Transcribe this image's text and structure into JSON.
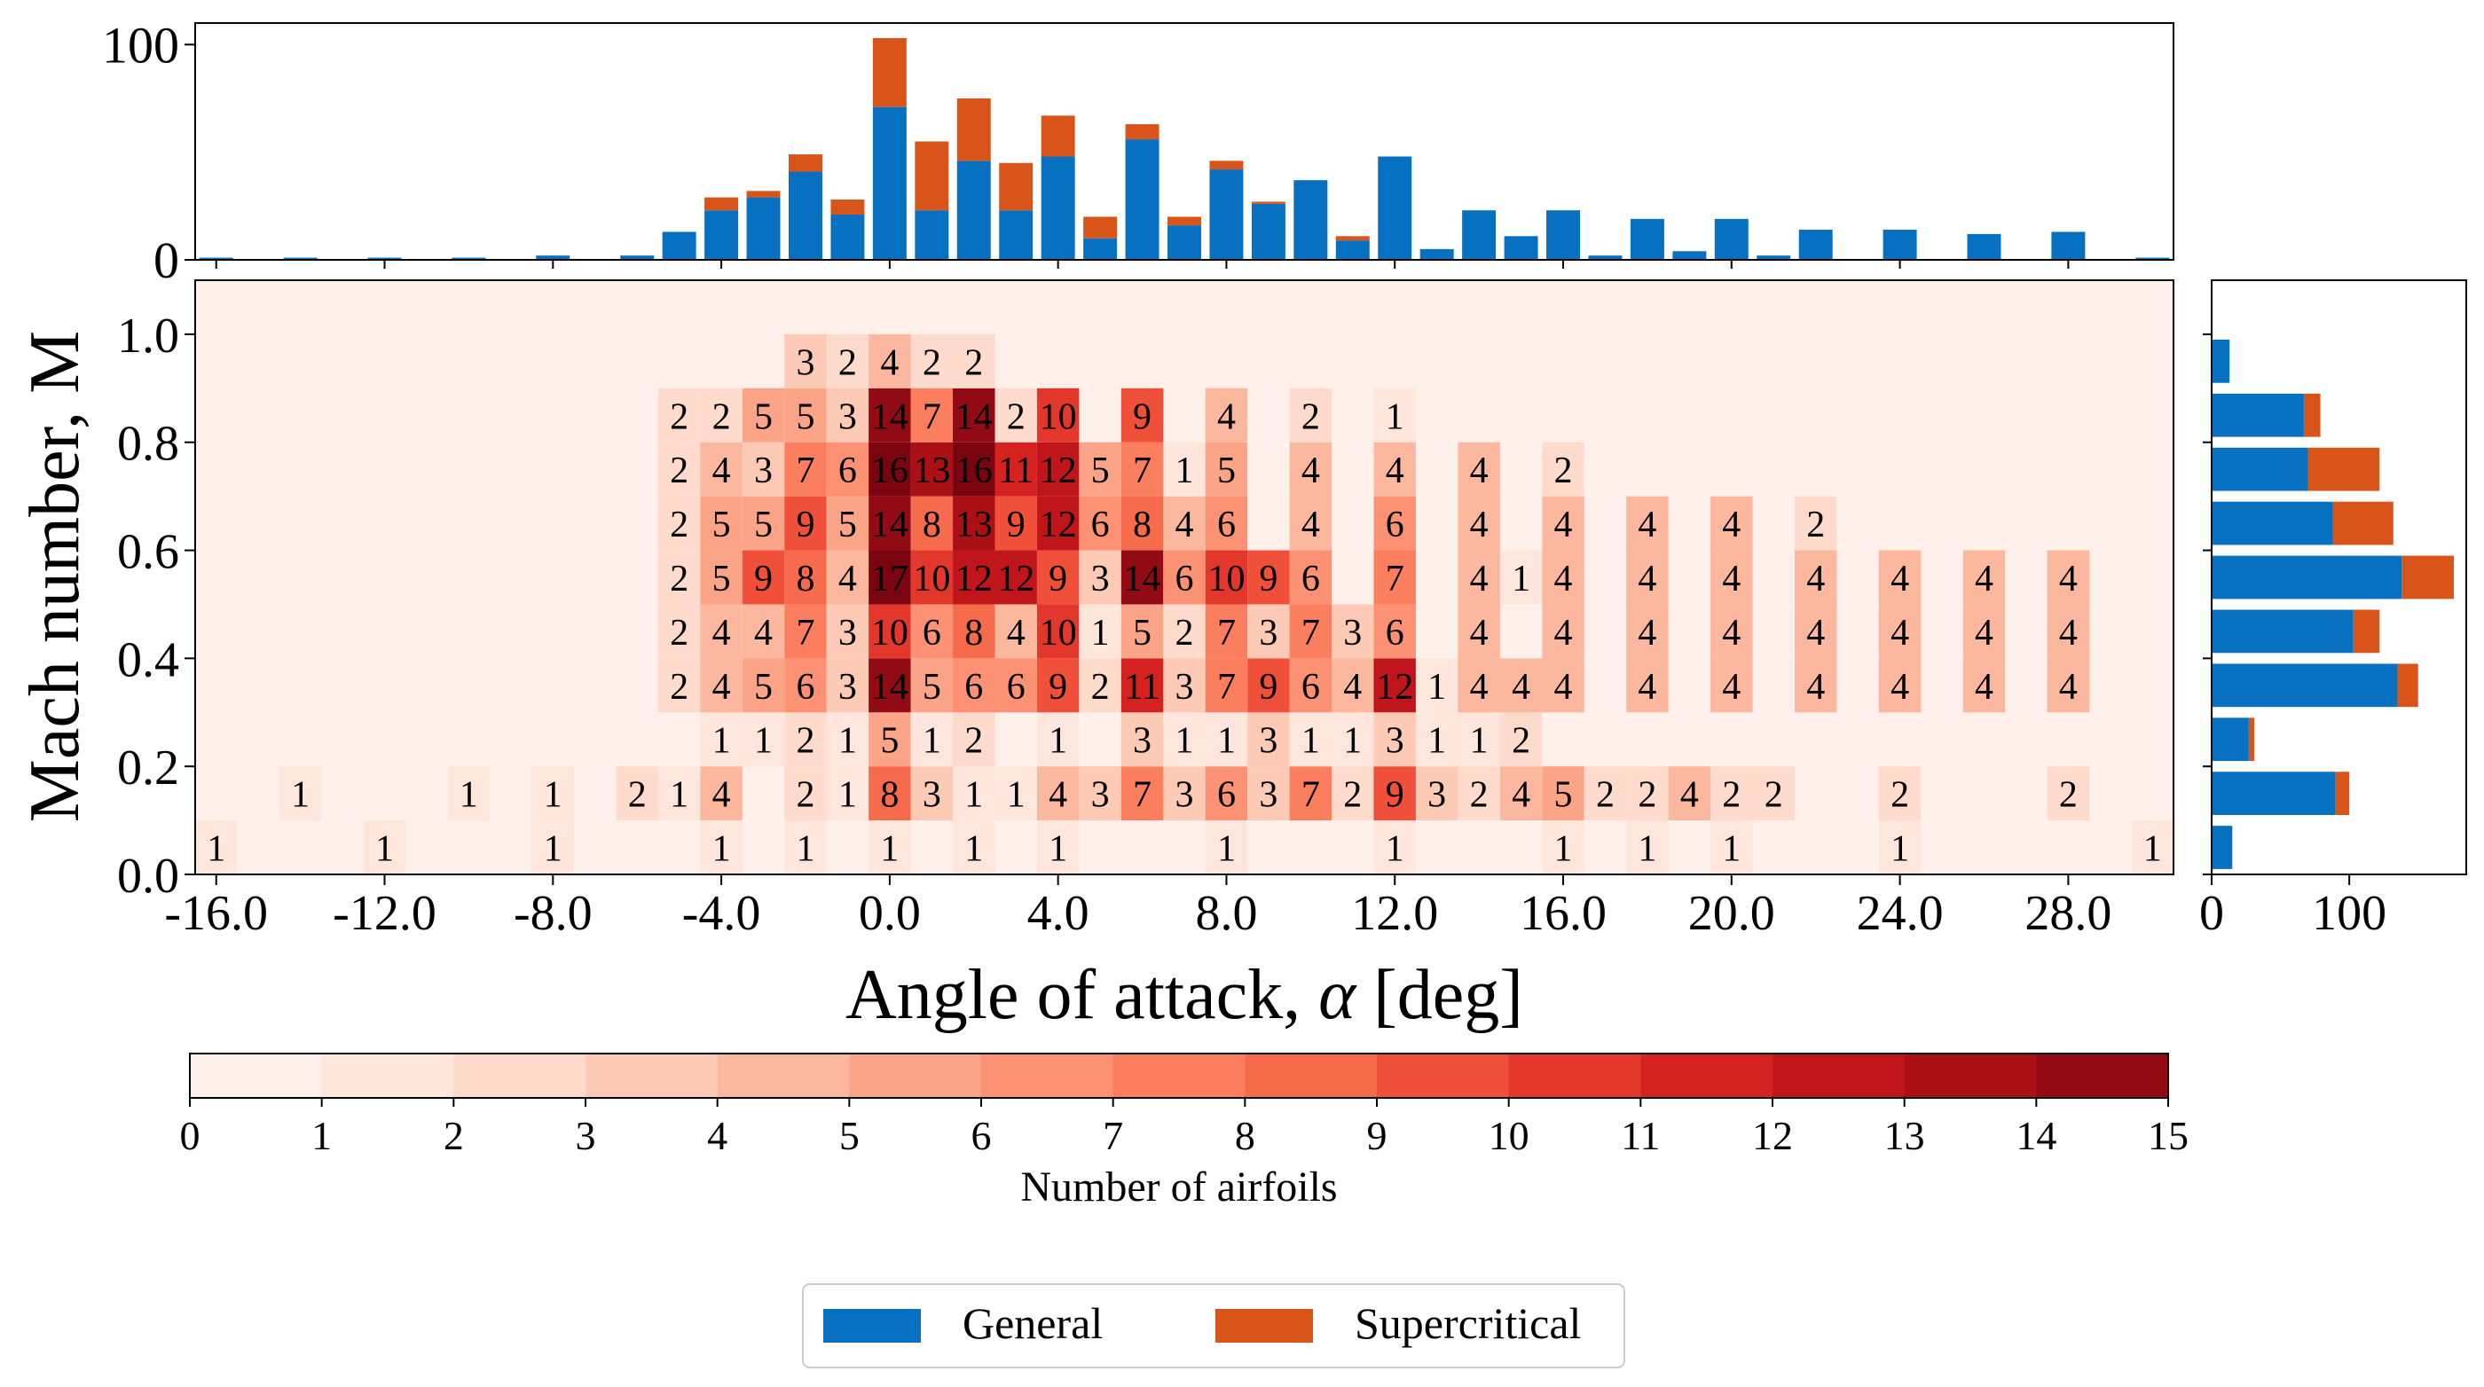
{
  "chart_data": [
    {
      "type": "bar",
      "role": "top-marginal-histogram",
      "stacked": true,
      "x": [
        -16,
        -14,
        -12,
        -10,
        -8,
        -6,
        -5,
        -4,
        -3,
        -2,
        -1,
        0,
        1,
        2,
        3,
        4,
        5,
        6,
        7,
        8,
        9,
        10,
        11,
        12,
        13,
        14,
        15,
        16,
        17,
        18,
        19,
        20,
        21,
        22,
        24,
        26,
        28,
        30
      ],
      "series": [
        {
          "name": "General",
          "values": [
            1,
            1,
            1,
            1,
            2,
            2,
            13,
            23,
            29,
            41,
            21,
            71,
            23,
            46,
            23,
            48,
            10,
            56,
            16,
            42,
            26,
            37,
            9,
            48,
            5,
            23,
            11,
            23,
            2,
            19,
            4,
            19,
            2,
            14,
            14,
            12,
            13,
            1
          ]
        },
        {
          "name": "Supercritical",
          "values": [
            0,
            0,
            0,
            0,
            0,
            0,
            0,
            6,
            3,
            8,
            7,
            32,
            32,
            29,
            22,
            19,
            10,
            7,
            4,
            4,
            1,
            0,
            2,
            0,
            0,
            0,
            0,
            0,
            0,
            0,
            0,
            0,
            0,
            0,
            0,
            0,
            0,
            0
          ]
        }
      ],
      "ylim": [
        0,
        110
      ],
      "yticks": [
        "0",
        "100"
      ]
    },
    {
      "type": "heatmap",
      "role": "main",
      "xlabel": "Angle of attack, ",
      "xlabel_symbol": "α",
      "xlabel_unit": " [deg]",
      "ylabel": "Mach number, M",
      "xlim": [
        -16.5,
        30.5
      ],
      "ylim": [
        0.0,
        1.1
      ],
      "xticks": [
        "-16.0",
        "-12.0",
        "-8.0",
        "-4.0",
        "0.0",
        "4.0",
        "8.0",
        "12.0",
        "16.0",
        "20.0",
        "24.0",
        "28.0"
      ],
      "yticks": [
        "0.0",
        "0.2",
        "0.4",
        "0.6",
        "0.8",
        "1.0"
      ],
      "background_color": "#fff0eb",
      "cells": [
        [
          -16,
          0.05,
          1
        ],
        [
          -12,
          0.05,
          1
        ],
        [
          -8,
          0.05,
          1
        ],
        [
          -4,
          0.05,
          1
        ],
        [
          -2,
          0.05,
          1
        ],
        [
          0,
          0.05,
          1
        ],
        [
          2,
          0.05,
          1
        ],
        [
          4,
          0.05,
          1
        ],
        [
          8,
          0.05,
          1
        ],
        [
          12,
          0.05,
          1
        ],
        [
          16,
          0.05,
          1
        ],
        [
          18,
          0.05,
          1
        ],
        [
          20,
          0.05,
          1
        ],
        [
          24,
          0.05,
          1
        ],
        [
          30,
          0.05,
          1
        ],
        [
          -14,
          0.15,
          1
        ],
        [
          -10,
          0.15,
          1
        ],
        [
          -8,
          0.15,
          1
        ],
        [
          -6,
          0.15,
          2
        ],
        [
          -5,
          0.15,
          1
        ],
        [
          -4,
          0.15,
          4
        ],
        [
          -2,
          0.15,
          2
        ],
        [
          -1,
          0.15,
          1
        ],
        [
          0,
          0.15,
          8
        ],
        [
          1,
          0.15,
          3
        ],
        [
          2,
          0.15,
          1
        ],
        [
          3,
          0.15,
          1
        ],
        [
          4,
          0.15,
          4
        ],
        [
          5,
          0.15,
          3
        ],
        [
          6,
          0.15,
          7
        ],
        [
          7,
          0.15,
          3
        ],
        [
          8,
          0.15,
          6
        ],
        [
          9,
          0.15,
          3
        ],
        [
          10,
          0.15,
          7
        ],
        [
          11,
          0.15,
          2
        ],
        [
          12,
          0.15,
          9
        ],
        [
          13,
          0.15,
          3
        ],
        [
          14,
          0.15,
          2
        ],
        [
          15,
          0.15,
          4
        ],
        [
          16,
          0.15,
          5
        ],
        [
          17,
          0.15,
          2
        ],
        [
          18,
          0.15,
          2
        ],
        [
          19,
          0.15,
          4
        ],
        [
          20,
          0.15,
          2
        ],
        [
          21,
          0.15,
          2
        ],
        [
          24,
          0.15,
          2
        ],
        [
          28,
          0.15,
          2
        ],
        [
          -4,
          0.25,
          1
        ],
        [
          -3,
          0.25,
          1
        ],
        [
          -2,
          0.25,
          2
        ],
        [
          -1,
          0.25,
          1
        ],
        [
          0,
          0.25,
          5
        ],
        [
          1,
          0.25,
          1
        ],
        [
          2,
          0.25,
          2
        ],
        [
          4,
          0.25,
          1
        ],
        [
          6,
          0.25,
          3
        ],
        [
          7,
          0.25,
          1
        ],
        [
          8,
          0.25,
          1
        ],
        [
          9,
          0.25,
          3
        ],
        [
          10,
          0.25,
          1
        ],
        [
          11,
          0.25,
          1
        ],
        [
          12,
          0.25,
          3
        ],
        [
          13,
          0.25,
          1
        ],
        [
          14,
          0.25,
          1
        ],
        [
          15,
          0.25,
          2
        ],
        [
          -5,
          0.35,
          2
        ],
        [
          -4,
          0.35,
          4
        ],
        [
          -3,
          0.35,
          5
        ],
        [
          -2,
          0.35,
          6
        ],
        [
          -1,
          0.35,
          3
        ],
        [
          0,
          0.35,
          14
        ],
        [
          1,
          0.35,
          5
        ],
        [
          2,
          0.35,
          6
        ],
        [
          3,
          0.35,
          6
        ],
        [
          4,
          0.35,
          9
        ],
        [
          5,
          0.35,
          2
        ],
        [
          6,
          0.35,
          11
        ],
        [
          7,
          0.35,
          3
        ],
        [
          8,
          0.35,
          7
        ],
        [
          9,
          0.35,
          9
        ],
        [
          10,
          0.35,
          6
        ],
        [
          11,
          0.35,
          4
        ],
        [
          12,
          0.35,
          12
        ],
        [
          13,
          0.35,
          1
        ],
        [
          14,
          0.35,
          4
        ],
        [
          15,
          0.35,
          4
        ],
        [
          16,
          0.35,
          4
        ],
        [
          18,
          0.35,
          4
        ],
        [
          20,
          0.35,
          4
        ],
        [
          22,
          0.35,
          4
        ],
        [
          24,
          0.35,
          4
        ],
        [
          26,
          0.35,
          4
        ],
        [
          28,
          0.35,
          4
        ],
        [
          -5,
          0.45,
          2
        ],
        [
          -4,
          0.45,
          4
        ],
        [
          -3,
          0.45,
          4
        ],
        [
          -2,
          0.45,
          7
        ],
        [
          -1,
          0.45,
          3
        ],
        [
          0,
          0.45,
          10
        ],
        [
          1,
          0.45,
          6
        ],
        [
          2,
          0.45,
          8
        ],
        [
          3,
          0.45,
          4
        ],
        [
          4,
          0.45,
          10
        ],
        [
          5,
          0.45,
          1
        ],
        [
          6,
          0.45,
          5
        ],
        [
          7,
          0.45,
          2
        ],
        [
          8,
          0.45,
          7
        ],
        [
          9,
          0.45,
          3
        ],
        [
          10,
          0.45,
          7
        ],
        [
          11,
          0.45,
          3
        ],
        [
          12,
          0.45,
          6
        ],
        [
          14,
          0.45,
          4
        ],
        [
          16,
          0.45,
          4
        ],
        [
          18,
          0.45,
          4
        ],
        [
          20,
          0.45,
          4
        ],
        [
          22,
          0.45,
          4
        ],
        [
          24,
          0.45,
          4
        ],
        [
          26,
          0.45,
          4
        ],
        [
          28,
          0.45,
          4
        ],
        [
          -5,
          0.55,
          2
        ],
        [
          -4,
          0.55,
          5
        ],
        [
          -3,
          0.55,
          9
        ],
        [
          -2,
          0.55,
          8
        ],
        [
          -1,
          0.55,
          4
        ],
        [
          0,
          0.55,
          17
        ],
        [
          1,
          0.55,
          10
        ],
        [
          2,
          0.55,
          12
        ],
        [
          3,
          0.55,
          12
        ],
        [
          4,
          0.55,
          9
        ],
        [
          5,
          0.55,
          3
        ],
        [
          6,
          0.55,
          14
        ],
        [
          7,
          0.55,
          6
        ],
        [
          8,
          0.55,
          10
        ],
        [
          9,
          0.55,
          9
        ],
        [
          10,
          0.55,
          6
        ],
        [
          12,
          0.55,
          7
        ],
        [
          14,
          0.55,
          4
        ],
        [
          15,
          0.55,
          1
        ],
        [
          16,
          0.55,
          4
        ],
        [
          18,
          0.55,
          4
        ],
        [
          20,
          0.55,
          4
        ],
        [
          22,
          0.55,
          4
        ],
        [
          24,
          0.55,
          4
        ],
        [
          26,
          0.55,
          4
        ],
        [
          28,
          0.55,
          4
        ],
        [
          -5,
          0.65,
          2
        ],
        [
          -4,
          0.65,
          5
        ],
        [
          -3,
          0.65,
          5
        ],
        [
          -2,
          0.65,
          9
        ],
        [
          -1,
          0.65,
          5
        ],
        [
          0,
          0.65,
          14
        ],
        [
          1,
          0.65,
          8
        ],
        [
          2,
          0.65,
          13
        ],
        [
          3,
          0.65,
          9
        ],
        [
          4,
          0.65,
          12
        ],
        [
          5,
          0.65,
          6
        ],
        [
          6,
          0.65,
          8
        ],
        [
          7,
          0.65,
          4
        ],
        [
          8,
          0.65,
          6
        ],
        [
          10,
          0.65,
          4
        ],
        [
          12,
          0.65,
          6
        ],
        [
          14,
          0.65,
          4
        ],
        [
          16,
          0.65,
          4
        ],
        [
          18,
          0.65,
          4
        ],
        [
          20,
          0.65,
          4
        ],
        [
          22,
          0.65,
          2
        ],
        [
          -5,
          0.75,
          2
        ],
        [
          -4,
          0.75,
          4
        ],
        [
          -3,
          0.75,
          3
        ],
        [
          -2,
          0.75,
          7
        ],
        [
          -1,
          0.75,
          6
        ],
        [
          0,
          0.75,
          16
        ],
        [
          1,
          0.75,
          13
        ],
        [
          2,
          0.75,
          16
        ],
        [
          3,
          0.75,
          11
        ],
        [
          4,
          0.75,
          12
        ],
        [
          5,
          0.75,
          5
        ],
        [
          6,
          0.75,
          7
        ],
        [
          7,
          0.75,
          1
        ],
        [
          8,
          0.75,
          5
        ],
        [
          10,
          0.75,
          4
        ],
        [
          12,
          0.75,
          4
        ],
        [
          14,
          0.75,
          4
        ],
        [
          16,
          0.75,
          2
        ],
        [
          -5,
          0.85,
          2
        ],
        [
          -4,
          0.85,
          2
        ],
        [
          -3,
          0.85,
          5
        ],
        [
          -2,
          0.85,
          5
        ],
        [
          -1,
          0.85,
          3
        ],
        [
          0,
          0.85,
          14
        ],
        [
          1,
          0.85,
          7
        ],
        [
          2,
          0.85,
          14
        ],
        [
          3,
          0.85,
          2
        ],
        [
          4,
          0.85,
          10
        ],
        [
          6,
          0.85,
          9
        ],
        [
          8,
          0.85,
          4
        ],
        [
          10,
          0.85,
          2
        ],
        [
          12,
          0.85,
          1
        ],
        [
          -2,
          0.95,
          3
        ],
        [
          -1,
          0.95,
          2
        ],
        [
          0,
          0.95,
          4
        ],
        [
          1,
          0.95,
          2
        ],
        [
          2,
          0.95,
          2
        ]
      ]
    },
    {
      "type": "bar",
      "role": "right-marginal-histogram",
      "orientation": "horizontal",
      "stacked": true,
      "y": [
        0.05,
        0.15,
        0.25,
        0.35,
        0.45,
        0.55,
        0.65,
        0.75,
        0.85,
        0.95
      ],
      "series": [
        {
          "name": "General",
          "values": [
            15,
            90,
            27,
            135,
            103,
            138,
            88,
            70,
            67,
            13
          ]
        },
        {
          "name": "Supercritical",
          "values": [
            0,
            10,
            4,
            15,
            19,
            38,
            44,
            52,
            12,
            0
          ]
        }
      ],
      "xlim": [
        0,
        185
      ],
      "xticks": [
        "0",
        "100"
      ]
    }
  ],
  "colorbar": {
    "label": "Number of airfoils",
    "ticks": [
      "0",
      "1",
      "2",
      "3",
      "4",
      "5",
      "6",
      "7",
      "8",
      "9",
      "10",
      "11",
      "12",
      "13",
      "14",
      "15"
    ],
    "colors": [
      "#fff0eb",
      "#ffe6dd",
      "#fedbcc",
      "#fdcab5",
      "#fcb79f",
      "#fca488",
      "#fc9273",
      "#fb7f5f",
      "#f76b4d",
      "#f0503a",
      "#e3372b",
      "#d52221",
      "#c0161b",
      "#ab1016",
      "#920a14",
      "#7a0510"
    ]
  },
  "legend": {
    "items": [
      {
        "label": "General",
        "color": "#0770c0"
      },
      {
        "label": "Supercritical",
        "color": "#d95418"
      }
    ]
  }
}
